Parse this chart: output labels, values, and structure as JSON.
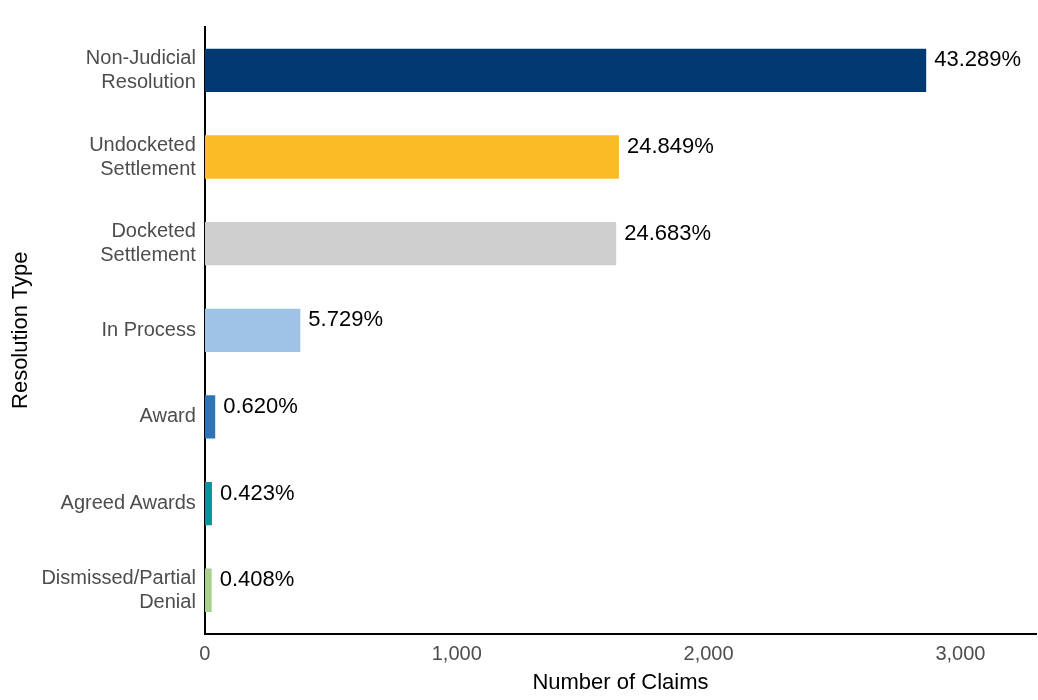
{
  "chart_data": {
    "type": "bar",
    "orientation": "horizontal",
    "xlabel": "Number of Claims",
    "ylabel": "Resolution Type",
    "categories": [
      "Non-Judicial Resolution",
      "Undocketed Settlement",
      "Docketed Settlement",
      "In Process",
      "Award",
      "Agreed Awards",
      "Dismissed/Partial Denial"
    ],
    "values": [
      2864,
      1644,
      1633,
      379,
      41,
      28,
      27
    ],
    "colors": [
      "#003a70",
      "#fbbb27",
      "#d0cfd0",
      "#9fc3e6",
      "#2f74b5",
      "#00969b",
      "#a8d08d"
    ],
    "annotations": [
      {
        "text": "43.289%",
        "x": 2864,
        "y": "Non-Judicial Resolution"
      },
      {
        "text": "24.849%",
        "x": 1644,
        "y": "Undocketed Settlement"
      },
      {
        "text": "24.683%",
        "x": 1633,
        "y": "Docketed Settlement"
      },
      {
        "text": "5.729%",
        "x": 379,
        "y": "In Process"
      },
      {
        "text": "0.620%",
        "x": 41,
        "y": "Award"
      },
      {
        "text": "0.423%",
        "x": 28,
        "y": "Agreed Awards"
      },
      {
        "text": "0.408%",
        "x": 27,
        "y": "Dismissed/Partial Denial"
      }
    ],
    "xlim": [
      0,
      3300
    ],
    "xticks": [
      0,
      {
        "value": 1000,
        "label": "1,000"
      },
      {
        "value": 2000,
        "label": "2,000"
      },
      {
        "value": 3000,
        "label": "3,000"
      }
    ],
    "grid": false,
    "legend": false
  }
}
